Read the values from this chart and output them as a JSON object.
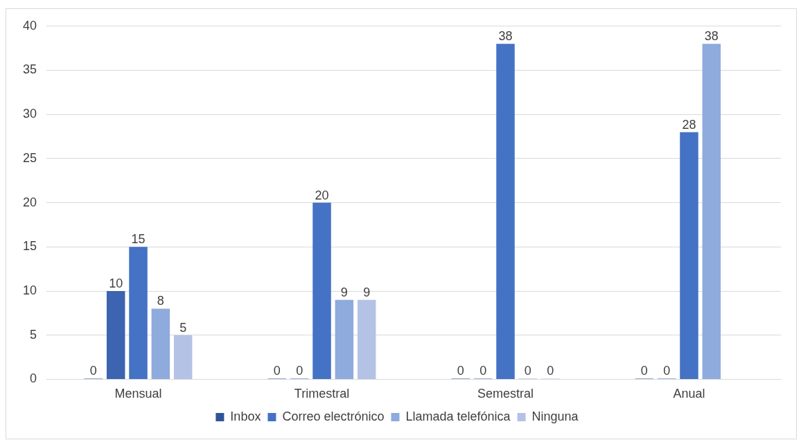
{
  "chart_data": {
    "type": "bar",
    "categories": [
      "Mensual",
      "Trimestral",
      "Semestral",
      "Anual"
    ],
    "series": [
      {
        "name": "Inbox",
        "color": "#2f5597",
        "values": [
          0,
          0,
          0,
          0
        ]
      },
      {
        "color": "#3c64b0",
        "values": [
          10,
          0,
          0,
          0
        ]
      },
      {
        "name": "Correo electrónico",
        "color": "#4472c4",
        "values": [
          15,
          20,
          38,
          28
        ]
      },
      {
        "name": "Llamada telefónica",
        "color": "#8faadc",
        "values": [
          8,
          9,
          0,
          38
        ]
      },
      {
        "name": "Ninguna",
        "color": "#b4c2e6",
        "values": [
          5,
          9,
          0,
          null
        ]
      }
    ],
    "ylim": [
      0,
      40
    ],
    "yticks": [
      0,
      5,
      10,
      15,
      20,
      25,
      30,
      35,
      40
    ],
    "grid": "y",
    "legend": "bottom",
    "data_labels": true
  }
}
